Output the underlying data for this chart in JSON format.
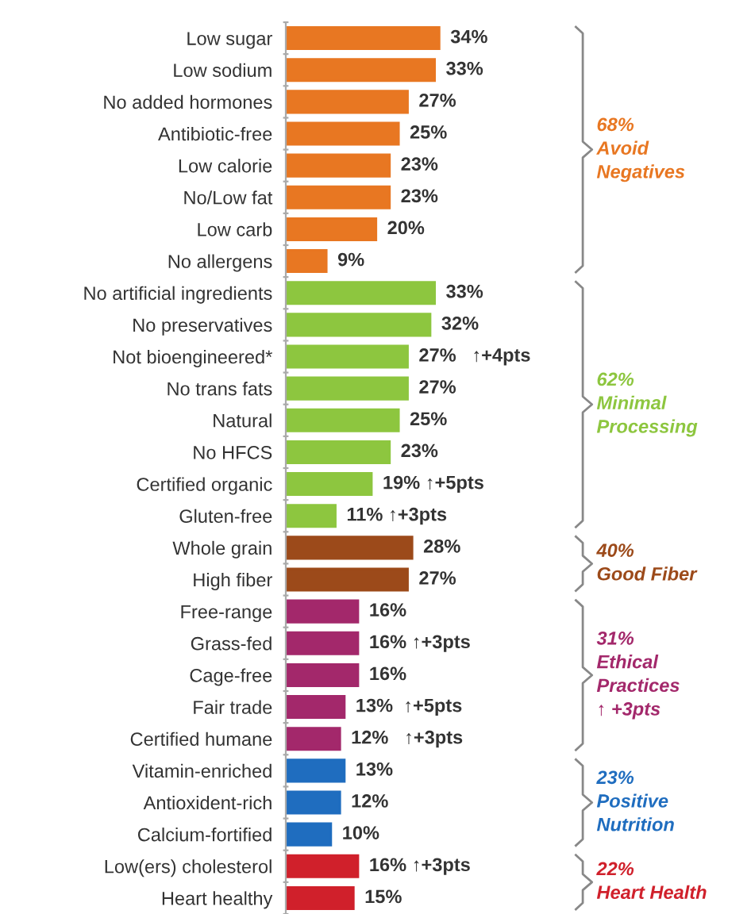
{
  "chart_data": {
    "type": "bar",
    "orientation": "horizontal",
    "categories": [
      "Low sugar",
      "Low sodium",
      "No added hormones",
      "Antibiotic-free",
      "Low calorie",
      "No/Low fat",
      "Low carb",
      "No allergens",
      "No artificial ingredients",
      "No preservatives",
      "Not bioengineered*",
      "No trans fats",
      "Natural",
      "No HFCS",
      "Certified organic",
      "Gluten-free",
      "Whole grain",
      "High fiber",
      "Free-range",
      "Grass-fed",
      "Cage-free",
      "Fair trade",
      "Certified humane",
      "Vitamin-enriched",
      "Antioxident-rich",
      "Calcium-fortified",
      "Low(ers) cholesterol",
      "Heart healthy"
    ],
    "values": [
      34,
      33,
      27,
      25,
      23,
      23,
      20,
      9,
      33,
      32,
      27,
      27,
      25,
      23,
      19,
      11,
      28,
      27,
      16,
      16,
      16,
      13,
      12,
      13,
      12,
      10,
      16,
      15
    ],
    "value_labels": [
      "34%",
      "33%",
      "27%",
      "25%",
      "23%",
      "23%",
      "20%",
      "9%",
      "33%",
      "32%",
      "27%   ↑+4pts",
      "27%",
      "25%",
      "23%",
      "19% ↑+5pts",
      "11% ↑+3pts",
      "28%",
      "27%",
      "16%",
      "16% ↑+3pts",
      "16%",
      "13%  ↑+5pts",
      "12%   ↑+3pts",
      "13%",
      "12%",
      "10%",
      "16% ↑+3pts",
      "15%"
    ],
    "colors": [
      "#e87722",
      "#e87722",
      "#e87722",
      "#e87722",
      "#e87722",
      "#e87722",
      "#e87722",
      "#e87722",
      "#8dc63f",
      "#8dc63f",
      "#8dc63f",
      "#8dc63f",
      "#8dc63f",
      "#8dc63f",
      "#8dc63f",
      "#8dc63f",
      "#9c4a1a",
      "#9c4a1a",
      "#a3286b",
      "#a3286b",
      "#a3286b",
      "#a3286b",
      "#a3286b",
      "#1f6dbf",
      "#1f6dbf",
      "#1f6dbf",
      "#d0202b",
      "#d0202b"
    ],
    "annotations": [
      "68%\nAvoid\nNegatives",
      "62%\nMinimal\nProcessing",
      "40%\nGood Fiber",
      "31%\nEthical\nPractices\n↑ +3pts",
      "23%\nPositive\nNutrition",
      "22%\nHeart Health"
    ],
    "grid": false,
    "legend": false
  }
}
